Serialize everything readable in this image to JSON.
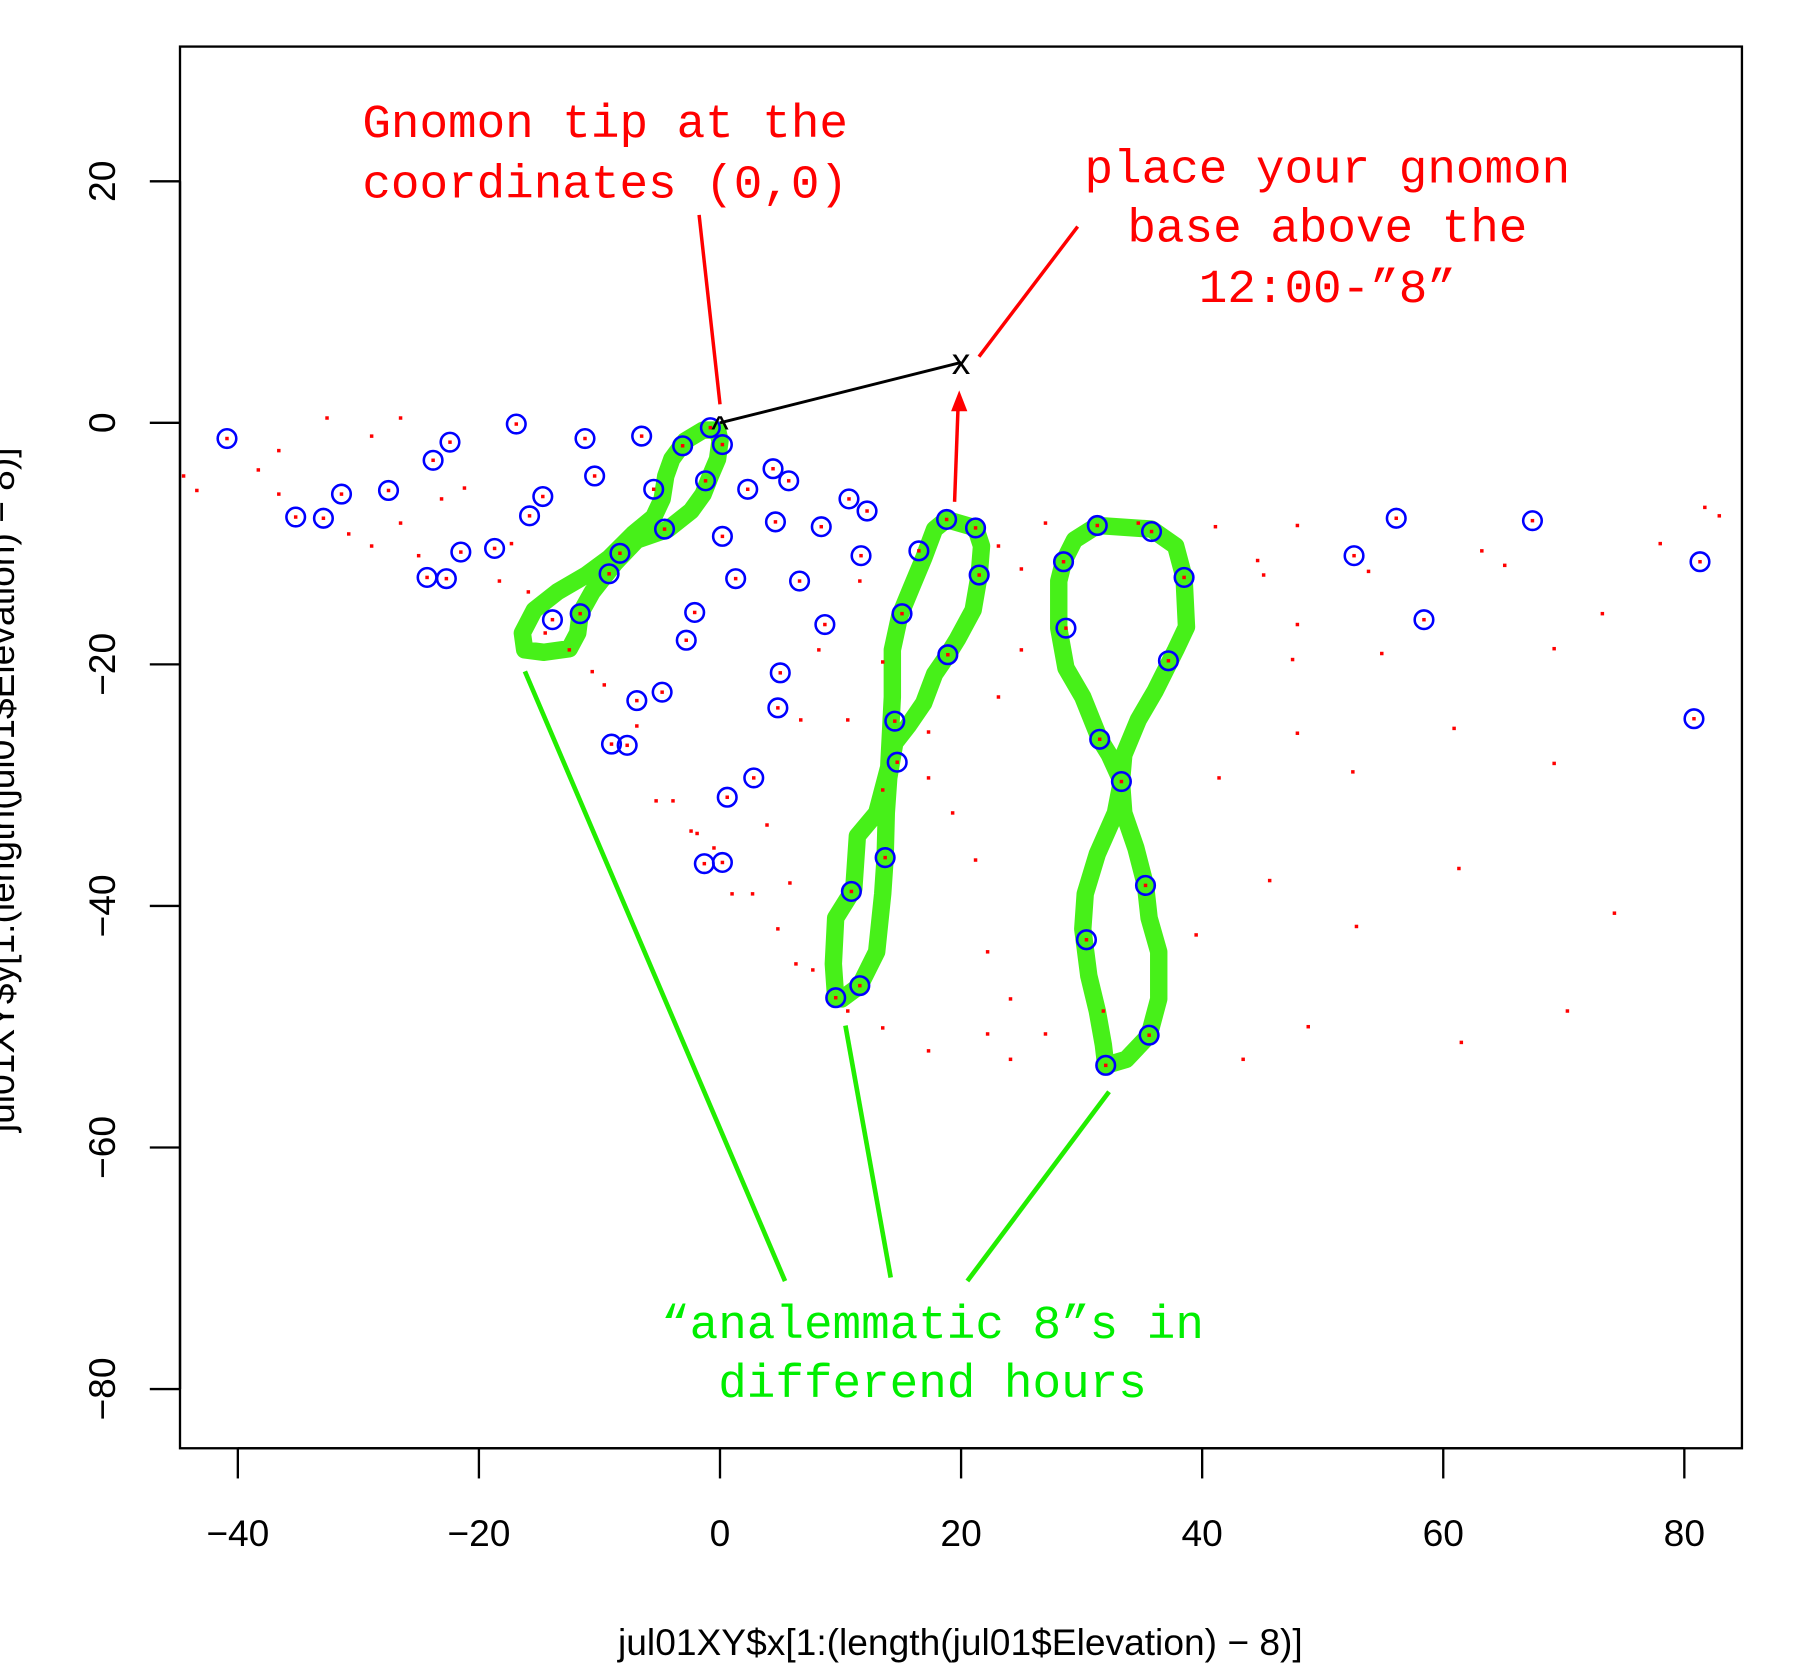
{
  "chart_data": {
    "type": "scatter",
    "title": "",
    "xlabel": "jul01XY$x[1:(length(jul01$Elevation) − 8)]",
    "ylabel": "jul01XY$y[1:(length(jul01$Elevation) − 8)]",
    "xlim": [
      -45,
      85
    ],
    "ylim": [
      -85,
      31
    ],
    "xticks": [
      -40,
      -20,
      0,
      20,
      40,
      60,
      80
    ],
    "yticks": [
      20,
      0,
      -20,
      -40,
      -60,
      -80
    ],
    "xtick_labels": [
      "−40",
      "−20",
      "0",
      "20",
      "40",
      "60",
      "80"
    ],
    "ytick_labels": [
      "20",
      "0",
      "−20",
      "−40",
      "−60",
      "−80"
    ],
    "grid": false,
    "colors": {
      "circles": "#0000ff",
      "dots": "#ff0000",
      "analemma": "#33ee00",
      "annotation_red": "#ff0000",
      "annotation_green": "#00ee00"
    },
    "blue_circles": [
      [
        -40.9,
        -1.3
      ],
      [
        -35.2,
        -7.8
      ],
      [
        -32.9,
        -7.9
      ],
      [
        -31.4,
        -5.9
      ],
      [
        -27.5,
        -5.6
      ],
      [
        -24.3,
        -12.8
      ],
      [
        -23.8,
        -3.1
      ],
      [
        -22.7,
        -12.9
      ],
      [
        -22.4,
        -1.6
      ],
      [
        -21.5,
        -10.7
      ],
      [
        -18.7,
        -10.4
      ],
      [
        -16.9,
        -0.1
      ],
      [
        -15.8,
        -7.7
      ],
      [
        -14.7,
        -6.1
      ],
      [
        -13.9,
        -16.3
      ],
      [
        -11.6,
        -15.8
      ],
      [
        -11.2,
        -1.3
      ],
      [
        -10.4,
        -4.4
      ],
      [
        -9.2,
        -12.5
      ],
      [
        -9.0,
        -26.6
      ],
      [
        -8.3,
        -10.8
      ],
      [
        -7.7,
        -26.7
      ],
      [
        -6.9,
        -23.0
      ],
      [
        -6.5,
        -1.1
      ],
      [
        -5.5,
        -5.5
      ],
      [
        -4.8,
        -22.3
      ],
      [
        -4.6,
        -8.8
      ],
      [
        -3.1,
        -1.9
      ],
      [
        -2.8,
        -18.0
      ],
      [
        -2.1,
        -15.7
      ],
      [
        -1.3,
        -36.5
      ],
      [
        -1.2,
        -4.8
      ],
      [
        -0.8,
        -0.4
      ],
      [
        0.2,
        -1.8
      ],
      [
        0.2,
        -36.4
      ],
      [
        0.2,
        -9.4
      ],
      [
        0.6,
        -31.0
      ],
      [
        1.3,
        -12.9
      ],
      [
        2.3,
        -5.5
      ],
      [
        2.8,
        -29.4
      ],
      [
        4.4,
        -3.8
      ],
      [
        4.6,
        -8.2
      ],
      [
        4.8,
        -23.6
      ],
      [
        5.0,
        -20.7
      ],
      [
        5.7,
        -4.8
      ],
      [
        6.6,
        -13.1
      ],
      [
        8.4,
        -8.6
      ],
      [
        8.7,
        -16.7
      ],
      [
        10.7,
        -6.3
      ],
      [
        10.9,
        -38.8
      ],
      [
        11.6,
        -46.6
      ],
      [
        11.7,
        -11.0
      ],
      [
        12.2,
        -7.3
      ],
      [
        9.6,
        -47.6
      ],
      [
        13.7,
        -36.0
      ],
      [
        14.5,
        -24.7
      ],
      [
        14.7,
        -28.1
      ],
      [
        15.1,
        -15.8
      ],
      [
        16.5,
        -10.6
      ],
      [
        18.8,
        -8.0
      ],
      [
        18.9,
        -19.2
      ],
      [
        21.2,
        -8.7
      ],
      [
        21.5,
        -12.6
      ],
      [
        28.5,
        -11.5
      ],
      [
        28.7,
        -17.0
      ],
      [
        30.4,
        -42.8
      ],
      [
        31.3,
        -8.5
      ],
      [
        31.5,
        -26.2
      ],
      [
        32.0,
        -53.2
      ],
      [
        33.3,
        -29.7
      ],
      [
        35.3,
        -38.3
      ],
      [
        35.6,
        -50.7
      ],
      [
        35.8,
        -9.0
      ],
      [
        37.2,
        -19.7
      ],
      [
        38.5,
        -12.8
      ],
      [
        52.6,
        -11.0
      ],
      [
        56.1,
        -7.9
      ],
      [
        58.4,
        -16.3
      ],
      [
        67.4,
        -8.1
      ],
      [
        80.8,
        -24.5
      ],
      [
        81.3,
        -11.5
      ]
    ],
    "red_dots_extra": [
      [
        41.1,
        -8.6
      ],
      [
        47.9,
        -8.5
      ],
      [
        44.6,
        -11.4
      ],
      [
        45.1,
        -12.6
      ],
      [
        47.9,
        -16.7
      ],
      [
        47.5,
        -19.6
      ],
      [
        47.9,
        -25.7
      ],
      [
        41.4,
        -29.4
      ],
      [
        45.6,
        -37.9
      ],
      [
        39.5,
        -42.4
      ],
      [
        48.8,
        -50.0
      ],
      [
        43.4,
        -52.7
      ],
      [
        52.5,
        -28.9
      ],
      [
        54.9,
        -19.1
      ],
      [
        53.8,
        -12.3
      ],
      [
        60.9,
        -25.3
      ],
      [
        61.3,
        -36.9
      ],
      [
        52.8,
        -41.7
      ],
      [
        61.5,
        -51.3
      ],
      [
        63.2,
        -10.6
      ],
      [
        65.1,
        -11.8
      ],
      [
        69.2,
        -18.7
      ],
      [
        73.2,
        -15.8
      ],
      [
        69.2,
        -28.2
      ],
      [
        74.2,
        -40.6
      ],
      [
        70.3,
        -48.7
      ],
      [
        78.0,
        -10.0
      ],
      [
        81.7,
        -7.0
      ],
      [
        82.9,
        -7.7
      ],
      [
        -43.4,
        -5.6
      ],
      [
        -44.5,
        -4.4
      ],
      [
        -36.6,
        -2.3
      ],
      [
        -32.6,
        0.4
      ],
      [
        -28.9,
        -1.1
      ],
      [
        -26.5,
        0.4
      ],
      [
        -38.3,
        -3.9
      ],
      [
        -36.6,
        -5.9
      ],
      [
        -30.8,
        -9.2
      ],
      [
        -28.9,
        -10.2
      ],
      [
        -26.5,
        -8.3
      ],
      [
        -25.0,
        -11.0
      ],
      [
        -23.1,
        -6.3
      ],
      [
        -21.2,
        -5.4
      ],
      [
        -17.3,
        -10.0
      ],
      [
        -18.3,
        -13.1
      ],
      [
        -15.9,
        -14.0
      ],
      [
        -14.5,
        -17.4
      ],
      [
        -12.5,
        -18.8
      ],
      [
        -10.6,
        -20.6
      ],
      [
        -9.6,
        -21.7
      ],
      [
        -6.9,
        -25.1
      ],
      [
        -5.3,
        -31.3
      ],
      [
        -3.9,
        -31.3
      ],
      [
        -2.4,
        -33.8
      ],
      [
        -1.9,
        -34.0
      ],
      [
        -0.5,
        -35.2
      ],
      [
        1.0,
        -39.0
      ],
      [
        2.7,
        -39.0
      ],
      [
        4.8,
        -41.9
      ],
      [
        6.3,
        -44.8
      ],
      [
        7.7,
        -45.3
      ],
      [
        10.6,
        -48.7
      ],
      [
        13.5,
        -50.1
      ],
      [
        17.3,
        -52.0
      ],
      [
        22.2,
        -50.6
      ],
      [
        24.1,
        -52.7
      ],
      [
        27.0,
        -50.6
      ],
      [
        22.2,
        -43.8
      ],
      [
        24.1,
        -47.7
      ],
      [
        21.2,
        -36.2
      ],
      [
        19.3,
        -32.3
      ],
      [
        17.3,
        -29.4
      ],
      [
        23.1,
        -22.7
      ],
      [
        25.0,
        -18.8
      ],
      [
        25.0,
        -12.1
      ],
      [
        23.1,
        -10.2
      ],
      [
        27.0,
        -8.3
      ],
      [
        34.7,
        -8.3
      ],
      [
        31.8,
        -48.7
      ],
      [
        11.6,
        -13.1
      ],
      [
        13.5,
        -19.8
      ],
      [
        10.6,
        -24.6
      ],
      [
        8.2,
        -18.8
      ],
      [
        6.7,
        -24.6
      ],
      [
        3.9,
        -33.3
      ],
      [
        5.8,
        -38.1
      ],
      [
        13.5,
        -30.4
      ],
      [
        17.3,
        -25.6
      ]
    ],
    "analemmas": [
      {
        "name": "analemma-1",
        "points": [
          [
            -1.4,
            -0.6
          ],
          [
            -2.9,
            -1.5
          ],
          [
            -4.0,
            -3.0
          ],
          [
            -4.5,
            -4.4
          ],
          [
            -4.8,
            -6.3
          ],
          [
            -5.5,
            -7.8
          ],
          [
            -7.2,
            -9.2
          ],
          [
            -9.2,
            -11.2
          ],
          [
            -11.1,
            -12.6
          ],
          [
            -13.5,
            -14.0
          ],
          [
            -15.4,
            -15.5
          ],
          [
            -16.4,
            -17.4
          ],
          [
            -16.2,
            -18.8
          ],
          [
            -14.6,
            -19.0
          ],
          [
            -12.5,
            -18.7
          ],
          [
            -11.8,
            -17.4
          ],
          [
            -11.6,
            -15.8
          ],
          [
            -10.6,
            -14.0
          ],
          [
            -8.7,
            -11.6
          ],
          [
            -6.9,
            -9.7
          ],
          [
            -4.3,
            -8.8
          ],
          [
            -2.4,
            -7.3
          ],
          [
            -1.4,
            -5.9
          ],
          [
            -0.8,
            -4.4
          ],
          [
            -0.2,
            -3.0
          ],
          [
            0.0,
            -1.5
          ],
          [
            -0.2,
            -0.6
          ]
        ]
      },
      {
        "name": "analemma-2",
        "points": [
          [
            18.8,
            -8.0
          ],
          [
            21.2,
            -8.7
          ],
          [
            21.7,
            -10.2
          ],
          [
            21.5,
            -12.6
          ],
          [
            21.0,
            -15.5
          ],
          [
            19.7,
            -17.9
          ],
          [
            18.9,
            -19.2
          ],
          [
            17.8,
            -20.8
          ],
          [
            16.9,
            -23.2
          ],
          [
            15.6,
            -25.1
          ],
          [
            14.5,
            -26.5
          ],
          [
            14.0,
            -29.4
          ],
          [
            13.8,
            -32.3
          ],
          [
            13.7,
            -36.0
          ],
          [
            13.5,
            -39.0
          ],
          [
            13.0,
            -43.8
          ],
          [
            11.6,
            -46.6
          ],
          [
            10.1,
            -47.7
          ],
          [
            9.6,
            -47.6
          ],
          [
            9.4,
            -44.8
          ],
          [
            9.6,
            -41.0
          ],
          [
            11.1,
            -38.6
          ],
          [
            11.4,
            -34.2
          ],
          [
            13.0,
            -32.3
          ],
          [
            14.0,
            -28.5
          ],
          [
            14.3,
            -22.7
          ],
          [
            14.3,
            -18.8
          ],
          [
            14.9,
            -16.0
          ],
          [
            15.9,
            -13.6
          ],
          [
            16.9,
            -11.2
          ],
          [
            17.8,
            -8.8
          ]
        ]
      },
      {
        "name": "analemma-3",
        "points": [
          [
            31.3,
            -8.5
          ],
          [
            35.8,
            -8.8
          ],
          [
            37.8,
            -10.2
          ],
          [
            38.5,
            -12.8
          ],
          [
            38.7,
            -16.9
          ],
          [
            37.8,
            -18.8
          ],
          [
            36.1,
            -22.2
          ],
          [
            34.7,
            -24.6
          ],
          [
            33.5,
            -27.5
          ],
          [
            33.3,
            -29.7
          ],
          [
            32.8,
            -32.3
          ],
          [
            31.3,
            -35.7
          ],
          [
            30.3,
            -39.0
          ],
          [
            30.1,
            -41.9
          ],
          [
            30.6,
            -45.8
          ],
          [
            31.3,
            -48.7
          ],
          [
            31.8,
            -51.5
          ],
          [
            32.0,
            -53.2
          ],
          [
            33.7,
            -52.7
          ],
          [
            35.6,
            -50.7
          ],
          [
            36.4,
            -47.7
          ],
          [
            36.4,
            -43.8
          ],
          [
            35.6,
            -41.0
          ],
          [
            35.3,
            -38.3
          ],
          [
            34.5,
            -35.2
          ],
          [
            33.5,
            -32.3
          ],
          [
            33.3,
            -29.7
          ],
          [
            32.3,
            -27.5
          ],
          [
            31.5,
            -26.2
          ],
          [
            30.1,
            -22.7
          ],
          [
            28.7,
            -20.3
          ],
          [
            28.1,
            -17.0
          ],
          [
            28.1,
            -13.1
          ],
          [
            28.5,
            -11.5
          ],
          [
            29.4,
            -9.7
          ]
        ]
      }
    ],
    "gnomon_tip": [
      0,
      0
    ],
    "gnomon_base": [
      20,
      5
    ],
    "gnomon_tip_marker": "^",
    "gnomon_base_marker": "x",
    "annotations": {
      "tip_line1": "Gnomon tip at the",
      "tip_line2": "coordinates (0,0)",
      "base_line1": "place your gnomon",
      "base_line2": "base above the",
      "base_line3": "12:00-”8”",
      "green_line1": "“analemmatic 8”s in",
      "green_line2": "differend hours"
    }
  }
}
